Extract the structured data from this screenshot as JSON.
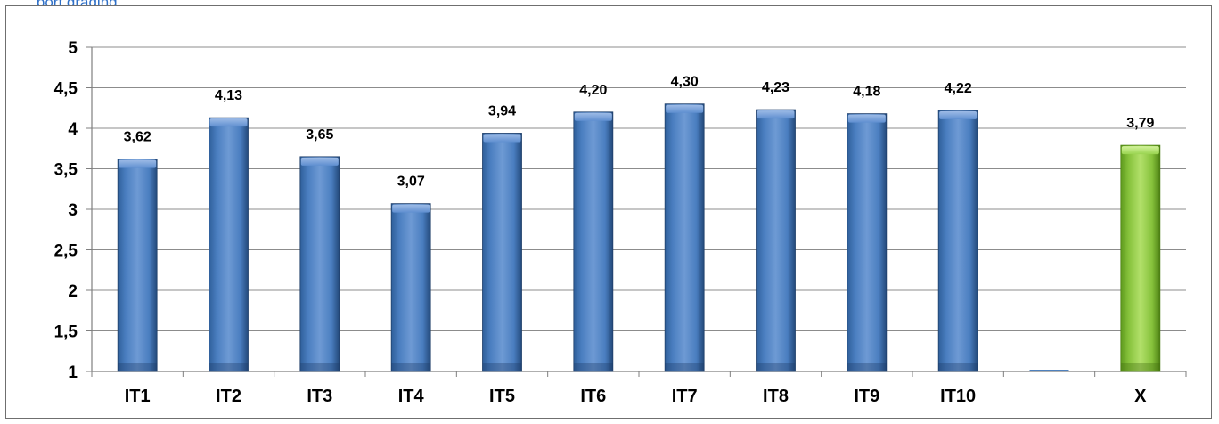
{
  "top_text": "... port grading ... ... ... ... ... ... ... ... ... ... ... ... ... ... ... ... ... ... ... ... ... ... ... ... ... ... ... ... ...",
  "chart_data": {
    "type": "bar",
    "title": "",
    "xlabel": "",
    "ylabel": "",
    "ylim": [
      1,
      5
    ],
    "yticks": [
      1,
      1.5,
      2,
      2.5,
      3,
      3.5,
      4,
      4.5,
      5
    ],
    "ytick_labels": [
      "1",
      "1,5",
      "2",
      "2,5",
      "3",
      "3,5",
      "4",
      "4,5",
      "5"
    ],
    "grid": true,
    "legend": "none",
    "categories": [
      "IT1",
      "IT2",
      "IT3",
      "IT4",
      "IT5",
      "IT6",
      "IT7",
      "IT8",
      "IT9",
      "IT10",
      "",
      "X"
    ],
    "values": [
      3.62,
      4.13,
      3.65,
      3.07,
      3.94,
      4.2,
      4.3,
      4.23,
      4.18,
      4.22,
      1.0,
      3.79
    ],
    "value_labels": [
      "3,62",
      "4,13",
      "3,65",
      "3,07",
      "3,94",
      "4,20",
      "4,30",
      "4,23",
      "4,18",
      "4,22",
      "",
      "3,79"
    ],
    "colors": {
      "default_bar": "#4f81bd",
      "highlight_bar": "#8fc73e",
      "grid": "#8c8c8c",
      "axis": "#7f7f7f"
    },
    "highlight_category": "X"
  }
}
